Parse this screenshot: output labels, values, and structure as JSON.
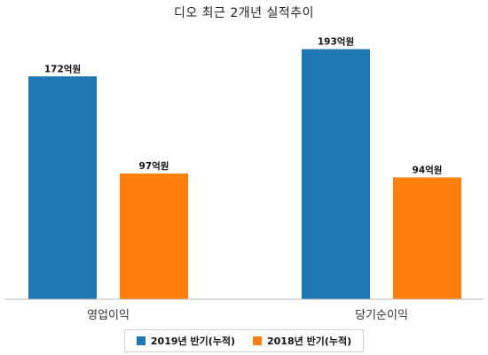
{
  "chart_data": {
    "type": "bar",
    "title": "디오 최근 2개년 실적추이",
    "categories": [
      "영업이익",
      "당기순이익"
    ],
    "series": [
      {
        "name": "2019년 반기(누적)",
        "values": [
          172,
          193
        ],
        "labels": [
          "172억원",
          "193억원"
        ],
        "color": "#1f77b4"
      },
      {
        "name": "2018년 반기(누적)",
        "values": [
          97,
          94
        ],
        "labels": [
          "97억원",
          "94억원"
        ],
        "color": "#ff7f0e"
      }
    ],
    "ylim": [
      0,
      220
    ],
    "legend": "bottom-center",
    "grid": false
  }
}
